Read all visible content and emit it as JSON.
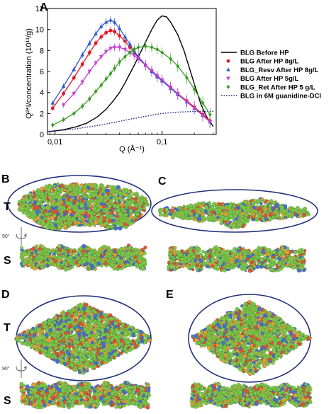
{
  "panels": {
    "A": "A",
    "B": "B",
    "C": "C",
    "D": "D",
    "E": "E"
  },
  "view_labels": {
    "top": "T",
    "side": "S",
    "rotation": "90°"
  },
  "colors": {
    "black": "#000000",
    "red": "#e8141e",
    "blue": "#2f55d4",
    "magenta": "#c33fd6",
    "green": "#3a9a24",
    "navy": "#1a2a8a",
    "ellipse": "#23327a",
    "atom_green": "#7cc84a",
    "atom_red": "#d9543c",
    "atom_blue": "#4a6fd1",
    "atom_orange": "#e2a23a"
  },
  "chart_data": {
    "type": "line",
    "xlabel": "Q (Å⁻¹)",
    "ylabel": "Q²*I/concentration (10¹¹/g)",
    "xscale": "log",
    "xlim": [
      0.0085,
      0.32
    ],
    "ylim": [
      0,
      12
    ],
    "xticks": [
      0.01,
      0.1
    ],
    "xtick_labels": [
      "0,01",
      "0,1"
    ],
    "yticks": [
      0,
      2,
      4,
      6,
      8,
      10,
      12
    ],
    "ytick_labels": [
      "0",
      "2",
      "4",
      "6",
      "8",
      "10",
      "12"
    ],
    "legend_position": "right",
    "series": [
      {
        "name": "BLG Before HP",
        "style": "line",
        "color": "#000000",
        "x": [
          0.0085,
          0.012,
          0.016,
          0.02,
          0.025,
          0.03,
          0.035,
          0.04,
          0.045,
          0.05,
          0.055,
          0.06,
          0.07,
          0.08,
          0.09,
          0.1,
          0.11,
          0.12,
          0.14,
          0.16,
          0.18,
          0.2,
          0.23,
          0.26,
          0.3
        ],
        "y": [
          0.25,
          0.45,
          0.75,
          1.1,
          1.7,
          2.4,
          3.2,
          4.0,
          4.9,
          5.8,
          6.6,
          7.4,
          8.8,
          10.0,
          10.9,
          11.3,
          11.2,
          10.7,
          9.5,
          8.0,
          6.3,
          4.8,
          2.9,
          1.7,
          0.75
        ]
      },
      {
        "name": "BLG After HP 8g/L",
        "style": "markers-line",
        "marker": "circle",
        "color": "#e8141e",
        "x": [
          0.0095,
          0.012,
          0.015,
          0.018,
          0.021,
          0.024,
          0.027,
          0.03,
          0.033,
          0.036,
          0.04,
          0.045,
          0.05,
          0.055,
          0.06,
          0.07,
          0.08,
          0.09,
          0.1,
          0.12,
          0.14,
          0.17,
          0.2,
          0.24,
          0.28
        ],
        "y": [
          2.5,
          3.9,
          5.4,
          6.7,
          7.8,
          8.7,
          9.3,
          9.7,
          9.9,
          9.8,
          9.4,
          8.9,
          8.3,
          7.8,
          7.3,
          6.6,
          6.0,
          5.5,
          5.1,
          4.5,
          3.9,
          3.2,
          2.6,
          1.9,
          1.3
        ]
      },
      {
        "name": "BLG_Resv After HP 8g/L",
        "style": "markers-line",
        "marker": "triangle",
        "color": "#2f55d4",
        "x": [
          0.0095,
          0.012,
          0.015,
          0.018,
          0.021,
          0.024,
          0.027,
          0.03,
          0.033,
          0.036,
          0.04,
          0.045,
          0.05,
          0.055,
          0.06,
          0.07,
          0.08,
          0.09,
          0.1,
          0.12,
          0.14,
          0.17,
          0.2,
          0.24,
          0.28
        ],
        "y": [
          3.0,
          4.6,
          6.2,
          7.6,
          8.7,
          9.6,
          10.3,
          10.7,
          10.9,
          10.7,
          10.1,
          9.3,
          8.6,
          7.9,
          7.4,
          6.6,
          6.0,
          5.5,
          5.1,
          4.4,
          3.8,
          3.1,
          2.5,
          1.8,
          1.2
        ]
      },
      {
        "name": "BLG After HP 5g/L",
        "style": "markers-line",
        "marker": "triangle-down",
        "color": "#c33fd6",
        "x": [
          0.012,
          0.015,
          0.018,
          0.021,
          0.024,
          0.027,
          0.03,
          0.033,
          0.036,
          0.04,
          0.045,
          0.05,
          0.055,
          0.06,
          0.07,
          0.08,
          0.09,
          0.1,
          0.12,
          0.14,
          0.17,
          0.2,
          0.24,
          0.28
        ],
        "y": [
          2.8,
          3.9,
          5.0,
          6.0,
          6.8,
          7.4,
          7.9,
          8.2,
          8.3,
          8.3,
          8.1,
          7.8,
          7.5,
          7.2,
          6.6,
          6.1,
          5.6,
          5.2,
          4.5,
          3.9,
          3.1,
          2.5,
          1.8,
          1.2
        ]
      },
      {
        "name": "BLG_Ret After HP 5 g/L",
        "style": "markers-line",
        "marker": "diamond",
        "color": "#3a9a24",
        "x": [
          0.0095,
          0.012,
          0.015,
          0.018,
          0.021,
          0.024,
          0.027,
          0.03,
          0.033,
          0.036,
          0.04,
          0.045,
          0.05,
          0.055,
          0.06,
          0.07,
          0.08,
          0.09,
          0.1,
          0.12,
          0.14,
          0.17,
          0.2,
          0.24,
          0.28
        ],
        "y": [
          0.9,
          1.4,
          2.0,
          2.7,
          3.4,
          4.1,
          4.7,
          5.3,
          5.8,
          6.3,
          6.9,
          7.4,
          7.8,
          8.1,
          8.3,
          8.4,
          8.3,
          8.1,
          7.8,
          7.2,
          6.5,
          5.4,
          4.3,
          3.0,
          1.9
        ]
      },
      {
        "name": "BLG in 6M guanidine-DCl",
        "style": "dotted",
        "color": "#1a2a8a",
        "x": [
          0.0085,
          0.012,
          0.016,
          0.02,
          0.025,
          0.03,
          0.04,
          0.05,
          0.06,
          0.08,
          0.1,
          0.13,
          0.16,
          0.2,
          0.25,
          0.3
        ],
        "y": [
          0.3,
          0.4,
          0.55,
          0.7,
          0.85,
          1.0,
          1.25,
          1.45,
          1.6,
          1.85,
          2.0,
          2.1,
          2.15,
          2.2,
          2.2,
          2.2
        ]
      }
    ]
  }
}
